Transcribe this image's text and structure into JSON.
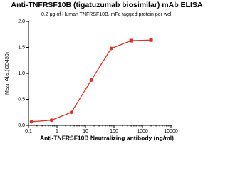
{
  "chart_data": {
    "type": "line",
    "title": "Anti-TNFRSF10B (tigatuzumab biosimilar) mAb ELISA",
    "subtitle": "0.2 μg of Human TNFRSF10B, mFc tagged protein per well",
    "x_label": "Anti-TNFRSF10B Neutralizing antibody (ng/ml)",
    "y_label": "Mean Abs.(OD450)",
    "x": [
      0.128,
      0.64,
      3.2,
      16,
      80,
      400,
      2000
    ],
    "series": [
      {
        "name": "Mean Abs.(OD450)",
        "color": "#e0302a",
        "values": [
          0.07,
          0.1,
          0.25,
          0.87,
          1.48,
          1.63,
          1.64
        ]
      }
    ],
    "xscale": "log",
    "xlim": [
      0.1,
      10000
    ],
    "xticks": [
      0.1,
      1,
      10,
      100,
      1000,
      10000
    ],
    "ylim": [
      0,
      2
    ],
    "yticks": [
      {
        "value": 0,
        "label": "0.0"
      },
      0.5,
      {
        "value": 1,
        "label": "1.0"
      },
      1.5,
      {
        "value": 2,
        "label": "2.0"
      }
    ],
    "grid": false
  }
}
